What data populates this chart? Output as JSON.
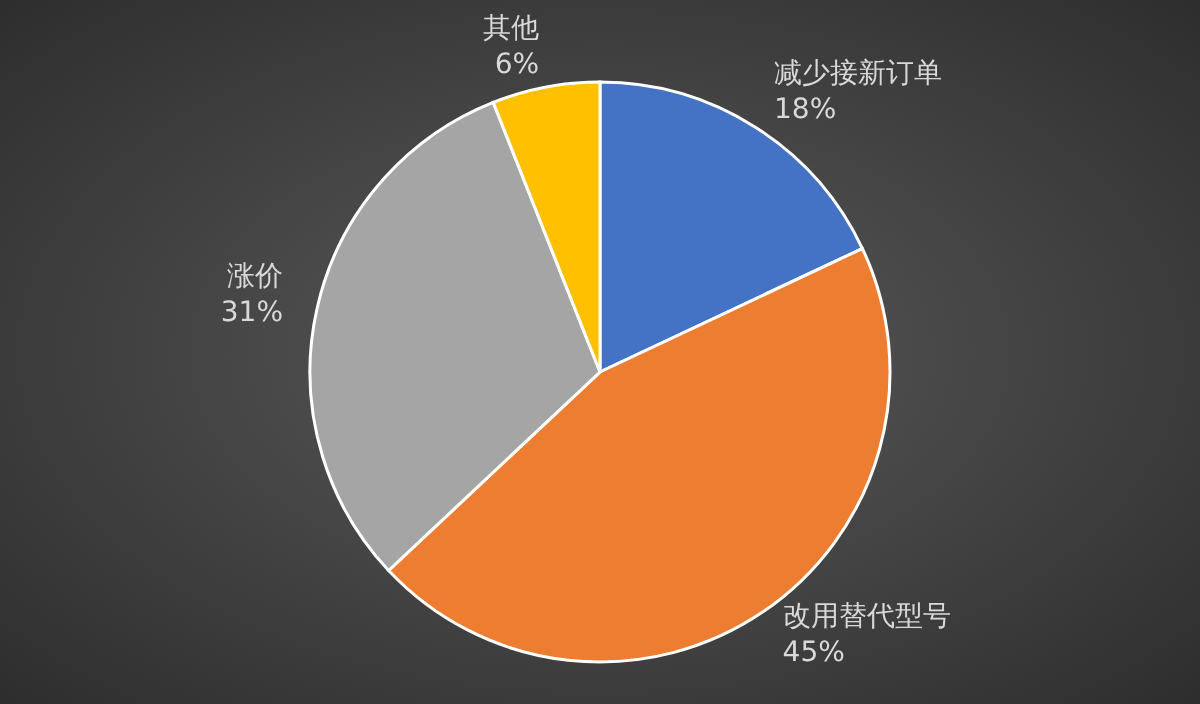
{
  "chart_data": {
    "type": "pie",
    "categories": [
      "减少接新订单",
      "改用替代型号",
      "涨价",
      "其他"
    ],
    "values": [
      18,
      45,
      31,
      6
    ],
    "colors": [
      "#4472c4",
      "#ed7d31",
      "#a5a5a5",
      "#ffc000"
    ],
    "value_labels": [
      "18%",
      "45%",
      "31%",
      "6%"
    ]
  }
}
